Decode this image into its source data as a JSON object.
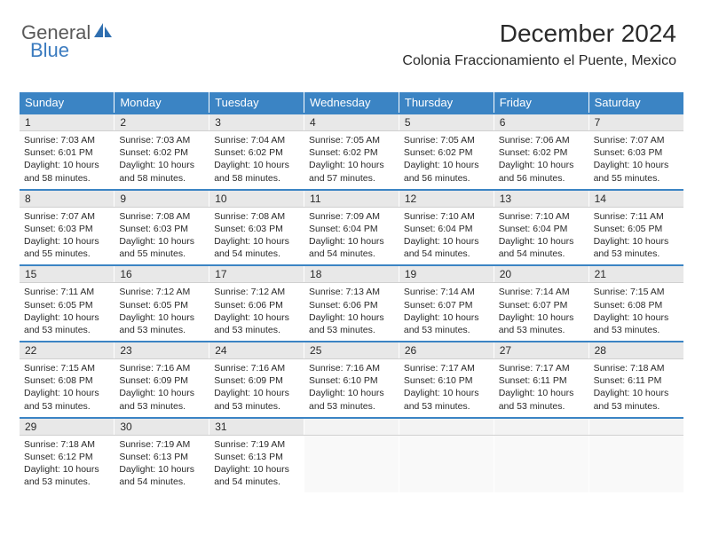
{
  "logo": {
    "part1": "General",
    "part2": "Blue"
  },
  "title": "December 2024",
  "location": "Colonia Fraccionamiento el Puente, Mexico",
  "colors": {
    "header_bg": "#3b84c4",
    "header_text": "#ffffff",
    "daynum_bg": "#e8e8e8",
    "row_border": "#3b84c4",
    "logo_gray": "#5a5a5a",
    "logo_blue": "#3b7bbf"
  },
  "day_headers": [
    "Sunday",
    "Monday",
    "Tuesday",
    "Wednesday",
    "Thursday",
    "Friday",
    "Saturday"
  ],
  "weeks": [
    {
      "nums": [
        "1",
        "2",
        "3",
        "4",
        "5",
        "6",
        "7"
      ],
      "cells": [
        {
          "sunrise": "7:03 AM",
          "sunset": "6:01 PM",
          "daylight": "10 hours and 58 minutes."
        },
        {
          "sunrise": "7:03 AM",
          "sunset": "6:02 PM",
          "daylight": "10 hours and 58 minutes."
        },
        {
          "sunrise": "7:04 AM",
          "sunset": "6:02 PM",
          "daylight": "10 hours and 58 minutes."
        },
        {
          "sunrise": "7:05 AM",
          "sunset": "6:02 PM",
          "daylight": "10 hours and 57 minutes."
        },
        {
          "sunrise": "7:05 AM",
          "sunset": "6:02 PM",
          "daylight": "10 hours and 56 minutes."
        },
        {
          "sunrise": "7:06 AM",
          "sunset": "6:02 PM",
          "daylight": "10 hours and 56 minutes."
        },
        {
          "sunrise": "7:07 AM",
          "sunset": "6:03 PM",
          "daylight": "10 hours and 55 minutes."
        }
      ]
    },
    {
      "nums": [
        "8",
        "9",
        "10",
        "11",
        "12",
        "13",
        "14"
      ],
      "cells": [
        {
          "sunrise": "7:07 AM",
          "sunset": "6:03 PM",
          "daylight": "10 hours and 55 minutes."
        },
        {
          "sunrise": "7:08 AM",
          "sunset": "6:03 PM",
          "daylight": "10 hours and 55 minutes."
        },
        {
          "sunrise": "7:08 AM",
          "sunset": "6:03 PM",
          "daylight": "10 hours and 54 minutes."
        },
        {
          "sunrise": "7:09 AM",
          "sunset": "6:04 PM",
          "daylight": "10 hours and 54 minutes."
        },
        {
          "sunrise": "7:10 AM",
          "sunset": "6:04 PM",
          "daylight": "10 hours and 54 minutes."
        },
        {
          "sunrise": "7:10 AM",
          "sunset": "6:04 PM",
          "daylight": "10 hours and 54 minutes."
        },
        {
          "sunrise": "7:11 AM",
          "sunset": "6:05 PM",
          "daylight": "10 hours and 53 minutes."
        }
      ]
    },
    {
      "nums": [
        "15",
        "16",
        "17",
        "18",
        "19",
        "20",
        "21"
      ],
      "cells": [
        {
          "sunrise": "7:11 AM",
          "sunset": "6:05 PM",
          "daylight": "10 hours and 53 minutes."
        },
        {
          "sunrise": "7:12 AM",
          "sunset": "6:05 PM",
          "daylight": "10 hours and 53 minutes."
        },
        {
          "sunrise": "7:12 AM",
          "sunset": "6:06 PM",
          "daylight": "10 hours and 53 minutes."
        },
        {
          "sunrise": "7:13 AM",
          "sunset": "6:06 PM",
          "daylight": "10 hours and 53 minutes."
        },
        {
          "sunrise": "7:14 AM",
          "sunset": "6:07 PM",
          "daylight": "10 hours and 53 minutes."
        },
        {
          "sunrise": "7:14 AM",
          "sunset": "6:07 PM",
          "daylight": "10 hours and 53 minutes."
        },
        {
          "sunrise": "7:15 AM",
          "sunset": "6:08 PM",
          "daylight": "10 hours and 53 minutes."
        }
      ]
    },
    {
      "nums": [
        "22",
        "23",
        "24",
        "25",
        "26",
        "27",
        "28"
      ],
      "cells": [
        {
          "sunrise": "7:15 AM",
          "sunset": "6:08 PM",
          "daylight": "10 hours and 53 minutes."
        },
        {
          "sunrise": "7:16 AM",
          "sunset": "6:09 PM",
          "daylight": "10 hours and 53 minutes."
        },
        {
          "sunrise": "7:16 AM",
          "sunset": "6:09 PM",
          "daylight": "10 hours and 53 minutes."
        },
        {
          "sunrise": "7:16 AM",
          "sunset": "6:10 PM",
          "daylight": "10 hours and 53 minutes."
        },
        {
          "sunrise": "7:17 AM",
          "sunset": "6:10 PM",
          "daylight": "10 hours and 53 minutes."
        },
        {
          "sunrise": "7:17 AM",
          "sunset": "6:11 PM",
          "daylight": "10 hours and 53 minutes."
        },
        {
          "sunrise": "7:18 AM",
          "sunset": "6:11 PM",
          "daylight": "10 hours and 53 minutes."
        }
      ]
    },
    {
      "nums": [
        "29",
        "30",
        "31",
        "",
        "",
        "",
        ""
      ],
      "cells": [
        {
          "sunrise": "7:18 AM",
          "sunset": "6:12 PM",
          "daylight": "10 hours and 53 minutes."
        },
        {
          "sunrise": "7:19 AM",
          "sunset": "6:13 PM",
          "daylight": "10 hours and 54 minutes."
        },
        {
          "sunrise": "7:19 AM",
          "sunset": "6:13 PM",
          "daylight": "10 hours and 54 minutes."
        },
        null,
        null,
        null,
        null
      ]
    }
  ],
  "labels": {
    "sunrise": "Sunrise:",
    "sunset": "Sunset:",
    "daylight": "Daylight:"
  }
}
